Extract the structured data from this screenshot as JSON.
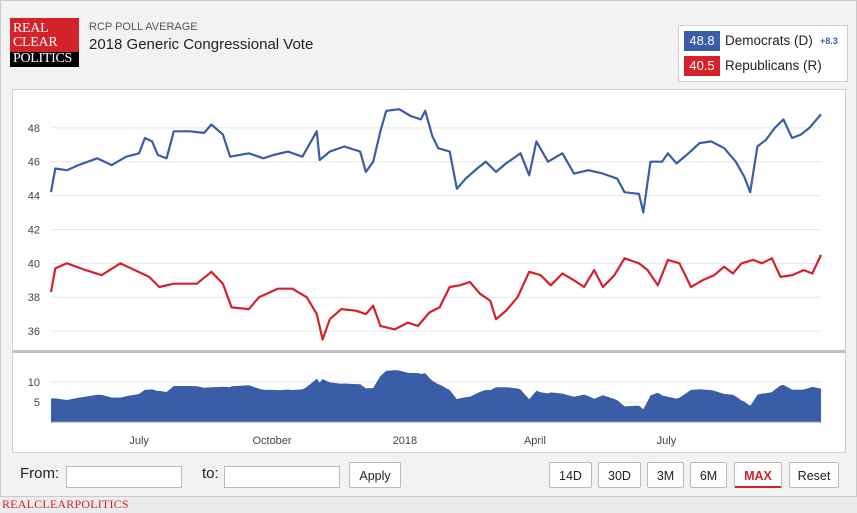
{
  "logo": {
    "line1": "REAL",
    "line2": "CLEAR",
    "line3": "POLITICS"
  },
  "header": {
    "kicker": "RCP POLL AVERAGE",
    "title": "2018 Generic Congressional Vote"
  },
  "legend": {
    "dem": {
      "value": "48.8",
      "label": "Democrats (D)",
      "spread": "+8.3",
      "color": "#3a5da8"
    },
    "rep": {
      "value": "40.5",
      "label": "Republicans (R)",
      "color": "#d3222a"
    }
  },
  "controls": {
    "from_label": "From:",
    "to_label": "to:",
    "from_value": "",
    "to_value": "",
    "apply_label": "Apply",
    "ranges": [
      "14D",
      "30D",
      "3M",
      "6M",
      "MAX"
    ],
    "active_range": "MAX",
    "reset_label": "Reset"
  },
  "footer": {
    "brand": "REALCLEARPOLITICS"
  },
  "chart_data": {
    "type": "line",
    "x_range": [
      "2017-05-01",
      "2018-10-16"
    ],
    "x_ticks": [
      {
        "label": "July",
        "date": "2017-07-01"
      },
      {
        "label": "October",
        "date": "2017-10-01"
      },
      {
        "label": "2018",
        "date": "2018-01-01"
      },
      {
        "label": "April",
        "date": "2018-04-01"
      },
      {
        "label": "July",
        "date": "2018-07-01"
      }
    ],
    "y_ticks": [
      36,
      38,
      40,
      42,
      44,
      46,
      48
    ],
    "ylim": [
      35,
      50
    ],
    "series": [
      {
        "name": "Democrats (D)",
        "color": "#3a5da8",
        "points": [
          [
            "2017-05-01",
            44.2
          ],
          [
            "2017-05-04",
            45.6
          ],
          [
            "2017-05-12",
            45.5
          ],
          [
            "2017-05-20",
            45.8
          ],
          [
            "2017-06-02",
            46.2
          ],
          [
            "2017-06-12",
            45.8
          ],
          [
            "2017-06-22",
            46.3
          ],
          [
            "2017-07-01",
            46.5
          ],
          [
            "2017-07-05",
            47.4
          ],
          [
            "2017-07-10",
            47.2
          ],
          [
            "2017-07-14",
            46.4
          ],
          [
            "2017-07-20",
            46.2
          ],
          [
            "2017-07-25",
            47.8
          ],
          [
            "2017-08-05",
            47.8
          ],
          [
            "2017-08-15",
            47.7
          ],
          [
            "2017-08-20",
            48.2
          ],
          [
            "2017-08-28",
            47.6
          ],
          [
            "2017-09-02",
            46.3
          ],
          [
            "2017-09-15",
            46.5
          ],
          [
            "2017-09-25",
            46.2
          ],
          [
            "2017-10-02",
            46.4
          ],
          [
            "2017-10-12",
            46.6
          ],
          [
            "2017-10-22",
            46.3
          ],
          [
            "2017-10-28",
            47.2
          ],
          [
            "2017-11-01",
            47.8
          ],
          [
            "2017-11-03",
            46.1
          ],
          [
            "2017-11-10",
            46.6
          ],
          [
            "2017-11-20",
            46.9
          ],
          [
            "2017-12-01",
            46.6
          ],
          [
            "2017-12-05",
            45.4
          ],
          [
            "2017-12-10",
            46.0
          ],
          [
            "2017-12-15",
            47.8
          ],
          [
            "2017-12-19",
            49.0
          ],
          [
            "2017-12-28",
            49.1
          ],
          [
            "2018-01-05",
            48.7
          ],
          [
            "2018-01-12",
            48.5
          ],
          [
            "2018-01-15",
            49.0
          ],
          [
            "2018-01-20",
            47.5
          ],
          [
            "2018-01-24",
            46.8
          ],
          [
            "2018-02-01",
            46.6
          ],
          [
            "2018-02-06",
            44.4
          ],
          [
            "2018-02-12",
            45.0
          ],
          [
            "2018-02-20",
            45.6
          ],
          [
            "2018-02-26",
            46.0
          ],
          [
            "2018-03-05",
            45.4
          ],
          [
            "2018-03-12",
            45.9
          ],
          [
            "2018-03-22",
            46.5
          ],
          [
            "2018-03-28",
            45.2
          ],
          [
            "2018-04-02",
            47.2
          ],
          [
            "2018-04-10",
            46.0
          ],
          [
            "2018-04-20",
            46.5
          ],
          [
            "2018-04-28",
            45.3
          ],
          [
            "2018-05-08",
            45.5
          ],
          [
            "2018-05-18",
            45.3
          ],
          [
            "2018-05-28",
            45.0
          ],
          [
            "2018-06-02",
            44.2
          ],
          [
            "2018-06-12",
            44.1
          ],
          [
            "2018-06-15",
            43.0
          ],
          [
            "2018-06-20",
            46.0
          ],
          [
            "2018-06-28",
            46.0
          ],
          [
            "2018-07-02",
            46.5
          ],
          [
            "2018-07-08",
            45.9
          ],
          [
            "2018-07-15",
            46.4
          ],
          [
            "2018-07-24",
            47.1
          ],
          [
            "2018-08-01",
            47.2
          ],
          [
            "2018-08-10",
            46.8
          ],
          [
            "2018-08-18",
            46.0
          ],
          [
            "2018-08-24",
            45.1
          ],
          [
            "2018-08-28",
            44.2
          ],
          [
            "2018-09-02",
            46.9
          ],
          [
            "2018-09-08",
            47.3
          ],
          [
            "2018-09-14",
            48.0
          ],
          [
            "2018-09-20",
            48.5
          ],
          [
            "2018-09-26",
            47.4
          ],
          [
            "2018-10-02",
            47.6
          ],
          [
            "2018-10-08",
            48.0
          ],
          [
            "2018-10-16",
            48.8
          ]
        ]
      },
      {
        "name": "Republicans (R)",
        "color": "#d3222a",
        "points": [
          [
            "2017-05-01",
            38.3
          ],
          [
            "2017-05-04",
            39.7
          ],
          [
            "2017-05-12",
            40.0
          ],
          [
            "2017-05-25",
            39.6
          ],
          [
            "2017-06-05",
            39.3
          ],
          [
            "2017-06-18",
            40.0
          ],
          [
            "2017-06-28",
            39.6
          ],
          [
            "2017-07-08",
            39.2
          ],
          [
            "2017-07-15",
            38.6
          ],
          [
            "2017-07-25",
            38.8
          ],
          [
            "2017-08-10",
            38.8
          ],
          [
            "2017-08-20",
            39.5
          ],
          [
            "2017-08-28",
            38.8
          ],
          [
            "2017-09-03",
            37.4
          ],
          [
            "2017-09-15",
            37.3
          ],
          [
            "2017-09-22",
            38.0
          ],
          [
            "2017-10-05",
            38.5
          ],
          [
            "2017-10-15",
            38.5
          ],
          [
            "2017-10-25",
            38.0
          ],
          [
            "2017-11-01",
            37.0
          ],
          [
            "2017-11-05",
            35.5
          ],
          [
            "2017-11-10",
            36.7
          ],
          [
            "2017-11-18",
            37.3
          ],
          [
            "2017-11-28",
            37.2
          ],
          [
            "2017-12-05",
            37.0
          ],
          [
            "2017-12-10",
            37.5
          ],
          [
            "2017-12-15",
            36.3
          ],
          [
            "2017-12-25",
            36.1
          ],
          [
            "2018-01-03",
            36.5
          ],
          [
            "2018-01-10",
            36.3
          ],
          [
            "2018-01-18",
            37.1
          ],
          [
            "2018-01-25",
            37.4
          ],
          [
            "2018-02-01",
            38.6
          ],
          [
            "2018-02-08",
            38.7
          ],
          [
            "2018-02-15",
            38.9
          ],
          [
            "2018-02-22",
            38.2
          ],
          [
            "2018-03-01",
            37.8
          ],
          [
            "2018-03-05",
            36.7
          ],
          [
            "2018-03-12",
            37.2
          ],
          [
            "2018-03-20",
            38.0
          ],
          [
            "2018-03-28",
            39.5
          ],
          [
            "2018-04-05",
            39.3
          ],
          [
            "2018-04-12",
            38.7
          ],
          [
            "2018-04-20",
            39.4
          ],
          [
            "2018-04-28",
            39.0
          ],
          [
            "2018-05-05",
            38.6
          ],
          [
            "2018-05-12",
            39.6
          ],
          [
            "2018-05-18",
            38.6
          ],
          [
            "2018-05-26",
            39.3
          ],
          [
            "2018-06-02",
            40.3
          ],
          [
            "2018-06-12",
            40.0
          ],
          [
            "2018-06-18",
            39.6
          ],
          [
            "2018-06-25",
            38.7
          ],
          [
            "2018-07-02",
            40.2
          ],
          [
            "2018-07-10",
            40.0
          ],
          [
            "2018-07-18",
            38.6
          ],
          [
            "2018-07-26",
            39.0
          ],
          [
            "2018-08-03",
            39.3
          ],
          [
            "2018-08-10",
            39.8
          ],
          [
            "2018-08-16",
            39.4
          ],
          [
            "2018-08-22",
            40.0
          ],
          [
            "2018-08-30",
            40.2
          ],
          [
            "2018-09-05",
            40.0
          ],
          [
            "2018-09-12",
            40.3
          ],
          [
            "2018-09-18",
            39.2
          ],
          [
            "2018-09-26",
            39.3
          ],
          [
            "2018-10-04",
            39.6
          ],
          [
            "2018-10-10",
            39.4
          ],
          [
            "2018-10-16",
            40.5
          ]
        ]
      }
    ],
    "navigator": {
      "y_ticks": [
        5,
        10
      ],
      "ylim": [
        0,
        14
      ]
    }
  }
}
